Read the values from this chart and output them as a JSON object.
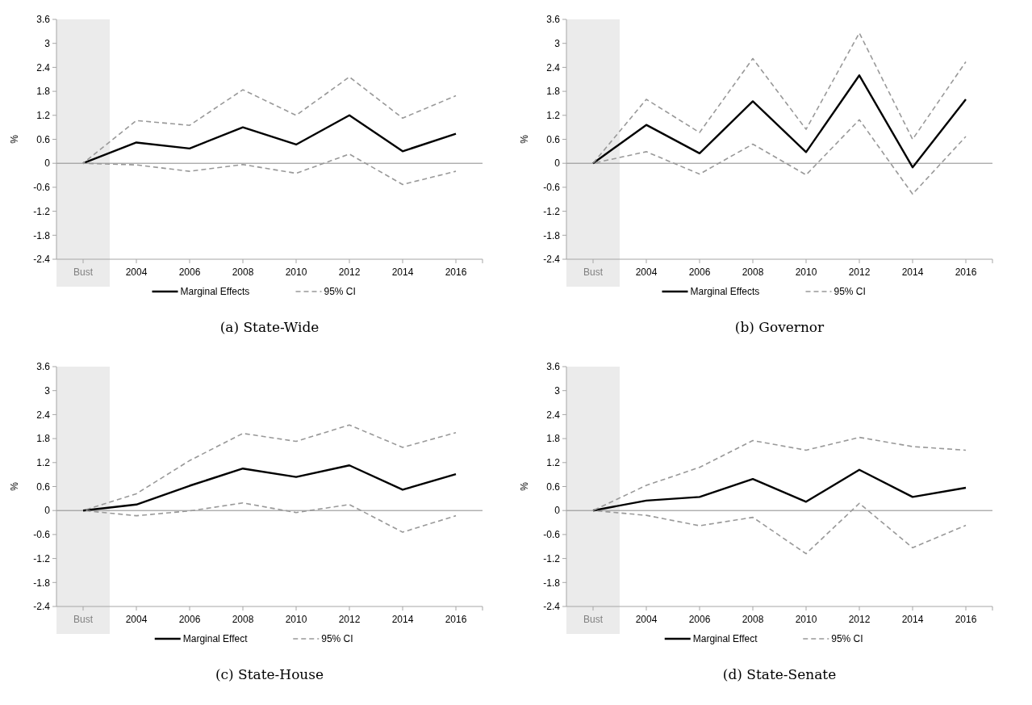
{
  "chart_data": [
    {
      "type": "line",
      "title": "(a) State-Wide",
      "ylabel": "%",
      "categories": [
        "Bust",
        "2004",
        "2006",
        "2008",
        "2010",
        "2012",
        "2014",
        "2016"
      ],
      "ylim": [
        -2.4,
        3.6
      ],
      "yticks": [
        -2.4,
        -1.8,
        -1.2,
        -0.6,
        0,
        0.6,
        1.2,
        1.8,
        2.4,
        3,
        3.6
      ],
      "legend": "bottom",
      "grid": false,
      "marker": "none",
      "bands": [
        {
          "axis": "x",
          "from": "Bust",
          "to": "Bust",
          "color": "#ebebeb"
        }
      ],
      "ref_lines": [
        {
          "axis": "y",
          "value": 0,
          "color": "#8c8c8c"
        }
      ],
      "series": [
        {
          "name": "Marginal Effects",
          "color": "#000000",
          "line_style": "solid",
          "values": [
            0,
            0.52,
            0.37,
            0.9,
            0.47,
            1.2,
            0.3,
            0.74
          ]
        },
        {
          "name": "95% CI",
          "color": "#999999",
          "line_style": "dashed",
          "values": [
            0,
            1.07,
            0.95,
            1.84,
            1.2,
            2.16,
            1.13,
            1.69
          ]
        },
        {
          "color": "#999999",
          "line_style": "dashed",
          "values": [
            0,
            -0.04,
            -0.2,
            -0.03,
            -0.25,
            0.23,
            -0.53,
            -0.2
          ]
        }
      ]
    },
    {
      "type": "line",
      "title": "(b) Governor",
      "ylabel": "%",
      "categories": [
        "Bust",
        "2004",
        "2006",
        "2008",
        "2010",
        "2012",
        "2014",
        "2016"
      ],
      "ylim": [
        -2.4,
        3.6
      ],
      "yticks": [
        -2.4,
        -1.8,
        -1.2,
        -0.6,
        0,
        0.6,
        1.2,
        1.8,
        2.4,
        3,
        3.6
      ],
      "legend": "bottom",
      "grid": false,
      "marker": "none",
      "bands": [
        {
          "axis": "x",
          "from": "Bust",
          "to": "Bust",
          "color": "#ebebeb"
        }
      ],
      "ref_lines": [
        {
          "axis": "y",
          "value": 0,
          "color": "#8c8c8c"
        }
      ],
      "series": [
        {
          "name": "Marginal Effects",
          "color": "#000000",
          "line_style": "solid",
          "values": [
            0,
            0.96,
            0.25,
            1.55,
            0.28,
            2.2,
            -0.1,
            1.6
          ]
        },
        {
          "name": "95% CI",
          "color": "#999999",
          "line_style": "dashed",
          "values": [
            0,
            1.6,
            0.77,
            2.62,
            0.85,
            3.26,
            0.6,
            2.54
          ]
        },
        {
          "color": "#999999",
          "line_style": "dashed",
          "values": [
            0,
            0.29,
            -0.27,
            0.48,
            -0.29,
            1.09,
            -0.77,
            0.67
          ]
        }
      ]
    },
    {
      "type": "line",
      "title": "(c) State-House",
      "ylabel": "%",
      "categories": [
        "Bust",
        "2004",
        "2006",
        "2008",
        "2010",
        "2012",
        "2014",
        "2016"
      ],
      "ylim": [
        -2.4,
        3.6
      ],
      "yticks": [
        -2.4,
        -1.8,
        -1.2,
        -0.6,
        0,
        0.6,
        1.2,
        1.8,
        2.4,
        3,
        3.6
      ],
      "legend": "bottom",
      "grid": false,
      "marker": "none",
      "bands": [
        {
          "axis": "x",
          "from": "Bust",
          "to": "Bust",
          "color": "#ebebeb"
        }
      ],
      "ref_lines": [
        {
          "axis": "y",
          "value": 0,
          "color": "#8c8c8c"
        }
      ],
      "series": [
        {
          "name": "Marginal Effect",
          "color": "#000000",
          "line_style": "solid",
          "values": [
            0,
            0.15,
            0.62,
            1.05,
            0.84,
            1.13,
            0.52,
            0.91
          ]
        },
        {
          "name": "95% CI",
          "color": "#999999",
          "line_style": "dashed",
          "values": [
            0,
            0.42,
            1.25,
            1.93,
            1.73,
            2.14,
            1.58,
            1.95
          ]
        },
        {
          "color": "#999999",
          "line_style": "dashed",
          "values": [
            0,
            -0.13,
            -0.01,
            0.19,
            -0.05,
            0.15,
            -0.54,
            -0.13
          ]
        }
      ]
    },
    {
      "type": "line",
      "title": "(d) State-Senate",
      "ylabel": "%",
      "categories": [
        "Bust",
        "2004",
        "2006",
        "2008",
        "2010",
        "2012",
        "2014",
        "2016"
      ],
      "ylim": [
        -2.4,
        3.6
      ],
      "yticks": [
        -2.4,
        -1.8,
        -1.2,
        -0.6,
        0,
        0.6,
        1.2,
        1.8,
        2.4,
        3,
        3.6
      ],
      "legend": "bottom",
      "grid": false,
      "marker": "none",
      "bands": [
        {
          "axis": "x",
          "from": "Bust",
          "to": "Bust",
          "color": "#ebebeb"
        }
      ],
      "ref_lines": [
        {
          "axis": "y",
          "value": 0,
          "color": "#8c8c8c"
        }
      ],
      "series": [
        {
          "name": "Marginal Effect",
          "color": "#000000",
          "line_style": "solid",
          "values": [
            0,
            0.25,
            0.34,
            0.79,
            0.22,
            1.02,
            0.34,
            0.57
          ]
        },
        {
          "name": "95% CI",
          "color": "#999999",
          "line_style": "dashed",
          "values": [
            0,
            0.63,
            1.08,
            1.75,
            1.51,
            1.83,
            1.6,
            1.51
          ]
        },
        {
          "color": "#999999",
          "line_style": "dashed",
          "values": [
            0,
            -0.12,
            -0.38,
            -0.17,
            -1.08,
            0.18,
            -0.93,
            -0.37
          ]
        }
      ]
    }
  ]
}
